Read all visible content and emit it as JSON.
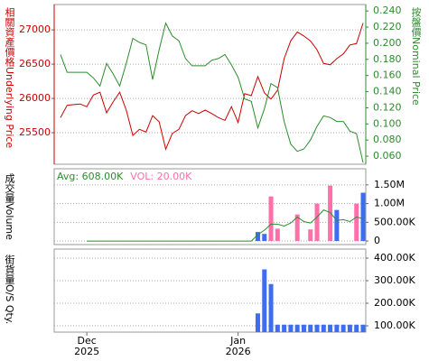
{
  "chart_data": [
    {
      "type": "line",
      "ylabel": "相關資產價格Underlying Price",
      "y2label": "按盤價Nominal Price",
      "ylim": [
        25040,
        27370
      ],
      "yticks": [
        25500,
        26000,
        26500,
        27000
      ],
      "y2lim": [
        0.05,
        0.248
      ],
      "y2ticks": [
        {
          "value": 0.06,
          "label": "0.060"
        },
        {
          "value": 0.08,
          "label": "0.080"
        },
        {
          "value": 0.1,
          "label": "0.100"
        },
        {
          "value": 0.12,
          "label": "0.120"
        },
        {
          "value": 0.14,
          "label": "0.140"
        },
        {
          "value": 0.16,
          "label": "0.160"
        },
        {
          "value": 0.18,
          "label": "0.180"
        },
        {
          "value": 0.2,
          "label": "0.200"
        },
        {
          "value": 0.22,
          "label": "0.220"
        },
        {
          "value": 0.24,
          "label": "0.240"
        }
      ],
      "grid": true,
      "series": [
        {
          "color": "#cc0000",
          "values": [
            25720,
            25900,
            25910,
            25920,
            25880,
            26050,
            26090,
            25790,
            25950,
            26090,
            25830,
            25460,
            25550,
            25510,
            25750,
            25660,
            25260,
            25490,
            25550,
            25750,
            25820,
            25780,
            25830,
            25780,
            25720,
            25680,
            25880,
            25650,
            26070,
            26040,
            26320,
            26080,
            25990,
            26120,
            26580,
            26840,
            26970,
            26910,
            26840,
            26710,
            26510,
            26490,
            26580,
            26650,
            26780,
            26800,
            27100
          ]
        },
        {
          "color": "#2e8b2e",
          "axis": "y2",
          "values": [
            0.186,
            0.164,
            0.164,
            0.164,
            0.164,
            0.157,
            0.147,
            0.175,
            0.162,
            0.147,
            0.175,
            0.206,
            0.201,
            0.198,
            0.155,
            0.192,
            0.225,
            0.209,
            0.203,
            0.181,
            0.172,
            0.172,
            0.172,
            0.179,
            0.181,
            0.186,
            0.173,
            0.158,
            0.131,
            0.128,
            0.095,
            0.119,
            0.15,
            0.145,
            0.103,
            0.075,
            0.066,
            0.069,
            0.08,
            0.097,
            0.11,
            0.108,
            0.103,
            0.103,
            0.091,
            0.088,
            0.052
          ]
        }
      ]
    },
    {
      "type": "bar",
      "ylabel": "成交量Volume",
      "ylim": [
        -95000,
        1930000
      ],
      "yticks": [
        0,
        {
          "value": 500000,
          "label": "500.00K"
        },
        {
          "value": 1000000,
          "label": "1.00M"
        },
        {
          "value": 1500000,
          "label": "1.50M"
        }
      ],
      "grid": true,
      "series": [
        {
          "name": "Avg: 608.00K",
          "type": "line",
          "color": "#2e8b2e",
          "values": [
            null,
            null,
            null,
            null,
            0,
            0,
            0,
            0,
            0,
            0,
            0,
            0,
            0,
            0,
            0,
            0,
            0,
            0,
            0,
            0,
            0,
            0,
            0,
            0,
            0,
            0,
            0,
            0,
            0,
            0,
            170000,
            290000,
            450000,
            450000,
            400000,
            480000,
            640000,
            520000,
            480000,
            640000,
            830000,
            760000,
            550000,
            570000,
            520000,
            640000,
            600000
          ]
        },
        {
          "name": "VOL: 20.00K",
          "color": "#ff6fa8",
          "values": [
            null,
            null,
            null,
            null,
            null,
            null,
            null,
            null,
            null,
            null,
            null,
            null,
            null,
            null,
            null,
            null,
            null,
            null,
            null,
            null,
            null,
            null,
            null,
            null,
            null,
            null,
            null,
            null,
            null,
            null,
            null,
            null,
            1190000,
            330000,
            null,
            null,
            710000,
            null,
            310000,
            1000000,
            null,
            1480000,
            null,
            null,
            null,
            1000000,
            null
          ]
        },
        {
          "color": "#3d6ef0",
          "values": [
            null,
            null,
            null,
            null,
            null,
            null,
            null,
            null,
            null,
            null,
            null,
            null,
            null,
            null,
            null,
            null,
            null,
            null,
            null,
            null,
            null,
            null,
            null,
            null,
            null,
            null,
            null,
            null,
            null,
            null,
            240000,
            190000,
            null,
            null,
            null,
            null,
            null,
            null,
            null,
            null,
            null,
            null,
            830000,
            null,
            null,
            null,
            1290000
          ]
        }
      ]
    },
    {
      "type": "bar",
      "ylabel": "街貨量O/S Qty.",
      "ylim": [
        72000,
        440000
      ],
      "yticks": [
        {
          "value": 100000,
          "label": "100.00K"
        },
        {
          "value": 200000,
          "label": "200.00K"
        },
        {
          "value": 300000,
          "label": "300.00K"
        },
        {
          "value": 400000,
          "label": "400.00K"
        }
      ],
      "grid": true,
      "categories": [
        null,
        null,
        null,
        null,
        "Dec 2025",
        null,
        null,
        null,
        null,
        null,
        null,
        null,
        null,
        null,
        null,
        null,
        null,
        null,
        null,
        null,
        null,
        null,
        null,
        null,
        null,
        null,
        null,
        "Jan 2026",
        null,
        null,
        null,
        null,
        null,
        null,
        null,
        null,
        null,
        null,
        null,
        null,
        null,
        null,
        null,
        null,
        null,
        null,
        null
      ],
      "series": [
        {
          "color": "#3d6ef0",
          "values": [
            null,
            null,
            null,
            null,
            null,
            null,
            null,
            null,
            null,
            null,
            null,
            null,
            null,
            null,
            null,
            null,
            null,
            null,
            null,
            null,
            null,
            null,
            null,
            null,
            null,
            null,
            null,
            null,
            null,
            null,
            155000,
            350000,
            285000,
            105000,
            105000,
            105000,
            105000,
            105000,
            105000,
            105000,
            105000,
            105000,
            105000,
            105000,
            105000,
            105000,
            105000
          ]
        }
      ]
    }
  ]
}
